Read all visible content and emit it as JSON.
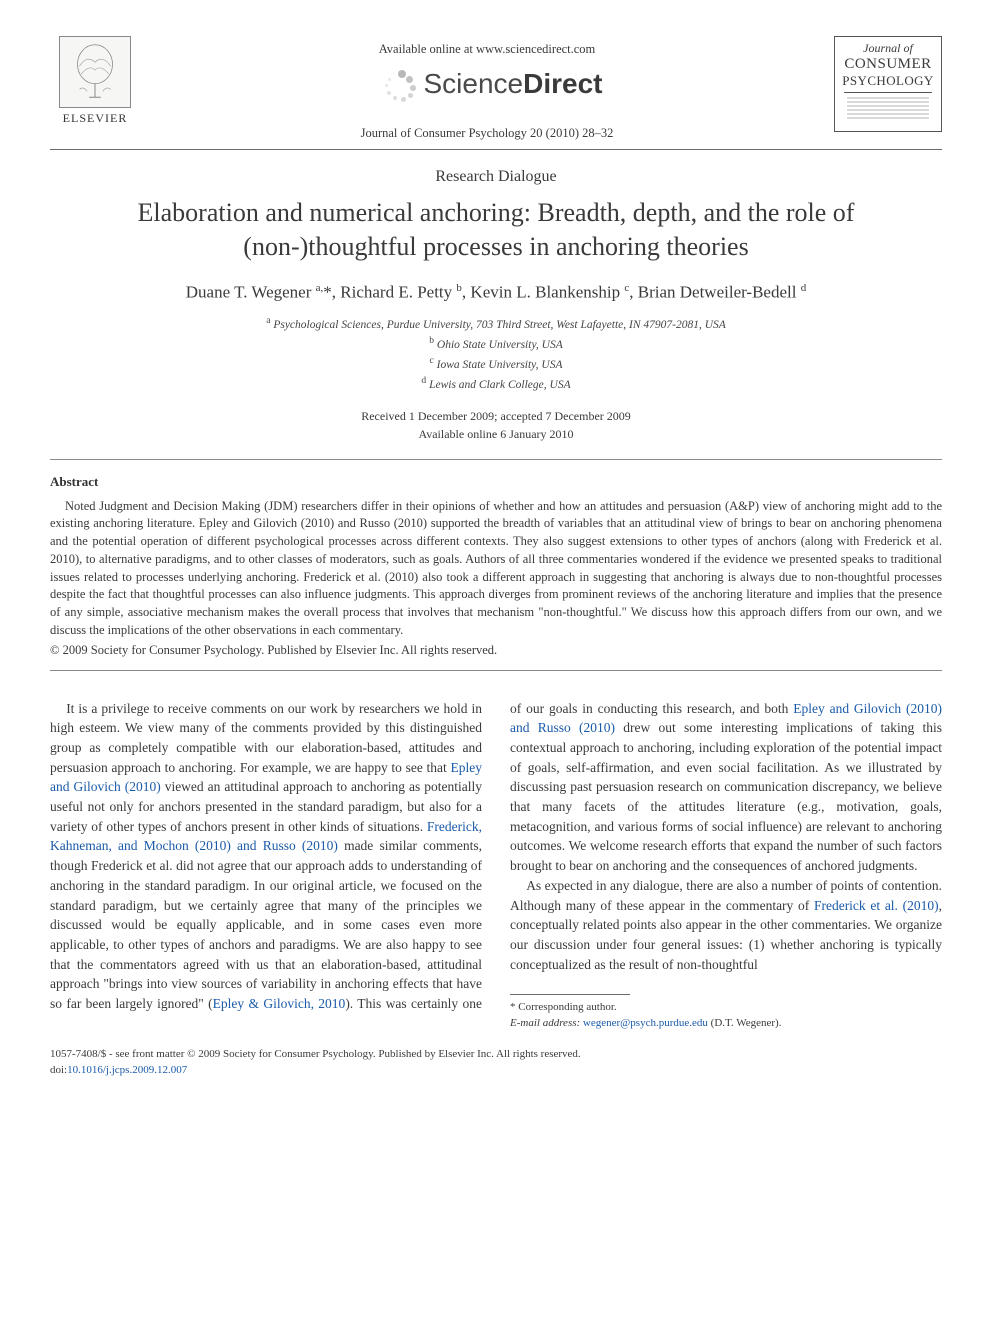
{
  "header": {
    "publisher_logo_label": "ELSEVIER",
    "available_online": "Available online at www.sciencedirect.com",
    "sd_brand_light": "Science",
    "sd_brand_bold": "Direct",
    "journal_ref": "Journal of Consumer Psychology 20 (2010) 28–32",
    "cover": {
      "line1": "Journal of",
      "line2": "CONSUMER",
      "line3": "PSYCHOLOGY"
    }
  },
  "article": {
    "type": "Research Dialogue",
    "title": "Elaboration and numerical anchoring: Breadth, depth, and the role of (non-)thoughtful processes in anchoring theories",
    "authors_html": "Duane T. Wegener <sup>a,</sup>*, Richard E. Petty <sup>b</sup>, Kevin L. Blankenship <sup>c</sup>, Brian Detweiler-Bedell <sup>d</sup>",
    "affiliations": [
      "a Psychological Sciences, Purdue University, 703 Third Street, West Lafayette, IN 47907-2081, USA",
      "b Ohio State University, USA",
      "c Iowa State University, USA",
      "d Lewis and Clark College, USA"
    ],
    "dates_line1": "Received 1 December 2009; accepted 7 December 2009",
    "dates_line2": "Available online 6 January 2010"
  },
  "abstract": {
    "heading": "Abstract",
    "text": "Noted Judgment and Decision Making (JDM) researchers differ in their opinions of whether and how an attitudes and persuasion (A&P) view of anchoring might add to the existing anchoring literature. Epley and Gilovich (2010) and Russo (2010) supported the breadth of variables that an attitudinal view of brings to bear on anchoring phenomena and the potential operation of different psychological processes across different contexts. They also suggest extensions to other types of anchors (along with Frederick et al. 2010), to alternative paradigms, and to other classes of moderators, such as goals. Authors of all three commentaries wondered if the evidence we presented speaks to traditional issues related to processes underlying anchoring. Frederick et al. (2010) also took a different approach in suggesting that anchoring is always due to non-thoughtful processes despite the fact that thoughtful processes can also influence judgments. This approach diverges from prominent reviews of the anchoring literature and implies that the presence of any simple, associative mechanism makes the overall process that involves that mechanism \"non-thoughtful.\" We discuss how this approach differs from our own, and we discuss the implications of the other observations in each commentary.",
    "copyright": "© 2009 Society for Consumer Psychology. Published by Elsevier Inc. All rights reserved."
  },
  "body": {
    "p1_pre": "It is a privilege to receive comments on our work by researchers we hold in high esteem. We view many of the comments provided by this distinguished group as completely compatible with our elaboration-based, attitudes and persuasion approach to anchoring. For example, we are happy to see that ",
    "cite1": "Epley and Gilovich (2010)",
    "p1_mid1": " viewed an attitudinal approach to anchoring as potentially useful not only for anchors presented in the standard paradigm, but also for a variety of other types of anchors present in other kinds of situations. ",
    "cite2": "Frederick, Kahneman, and Mochon (2010) and Russo (2010)",
    "p1_mid2": " made similar comments, though Frederick et al. did not agree that our approach adds to understanding of anchoring in the standard paradigm. In our original article, we focused on the standard paradigm, but we certainly agree that many of the principles we discussed would be equally applicable, and in some cases even more applicable, to other types of anchors and paradigms. We are also happy to see that the commentators agreed with us that an elaboration-based, attitudinal approach \"brings into view sources of variability in anchoring effects that have so far been largely ignored\" (",
    "cite3": "Epley & Gilovich, 2010",
    "p1_mid3": "). This was certainly one of our goals in conducting this research, and both ",
    "cite4": "Epley and Gilovich (2010) and Russo (2010)",
    "p1_post": " drew out some interesting implications of taking this contextual approach to anchoring, including exploration of the potential impact of goals, self-affirmation, and even social facilitation. As we illustrated by discussing past persuasion research on communication discrepancy, we believe that many facets of the attitudes literature (e.g., motivation, goals, metacognition, and various forms of social influence) are relevant to anchoring outcomes. We welcome research efforts that expand the number of such factors brought to bear on anchoring and the consequences of anchored judgments.",
    "p2_pre": "As expected in any dialogue, there are also a number of points of contention. Although many of these appear in the commentary of ",
    "cite5": "Frederick et al. (2010)",
    "p2_post": ", conceptually related points also appear in the other commentaries. We organize our discussion under four general issues: (1) whether anchoring is typically conceptualized as the result of non-thoughtful"
  },
  "footnote": {
    "corresponding": "* Corresponding author.",
    "email_label": "E-mail address:",
    "email": "wegener@psych.purdue.edu",
    "email_paren": "(D.T. Wegener)."
  },
  "bottom": {
    "line1": "1057-7408/$ - see front matter © 2009 Society for Consumer Psychology. Published by Elsevier Inc. All rights reserved.",
    "doi_label": "doi:",
    "doi": "10.1016/j.jcps.2009.12.007"
  },
  "colors": {
    "link": "#1a5aa8",
    "text": "#3a3a3a",
    "rule": "#6b6b6b"
  }
}
